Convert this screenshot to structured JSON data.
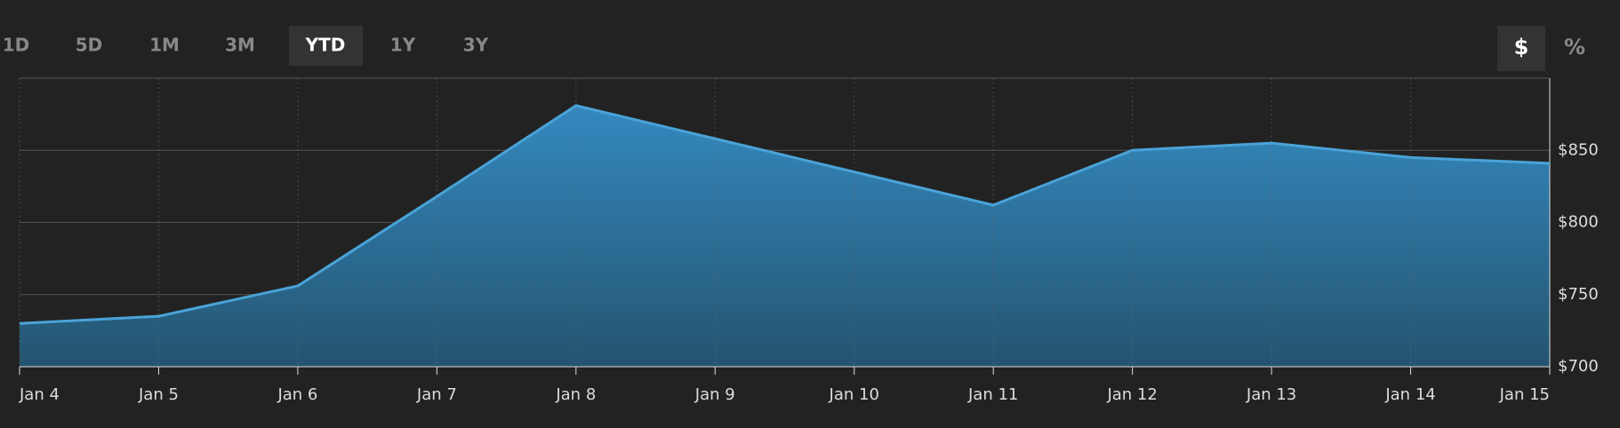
{
  "controls": {
    "ranges": [
      "1D",
      "5D",
      "1M",
      "3M",
      "YTD",
      "1Y",
      "3Y"
    ],
    "active_range": "YTD",
    "units": [
      "$",
      "%"
    ],
    "active_unit": "$"
  },
  "chart_data": {
    "type": "area",
    "categories": [
      "Jan 4",
      "Jan 5",
      "Jan 6",
      "Jan 7",
      "Jan 8",
      "Jan 9",
      "Jan 10",
      "Jan 11",
      "Jan 12",
      "Jan 13",
      "Jan 14",
      "Jan 15"
    ],
    "series": [
      {
        "color": "#4aa3d8",
        "values": [
          730,
          735,
          756,
          818,
          881,
          858,
          835,
          812,
          850,
          855,
          845,
          841
        ]
      }
    ],
    "ylim": [
      700,
      900
    ],
    "yticks": [
      {
        "value": 700,
        "label": "$700"
      },
      {
        "value": 750,
        "label": "$750"
      },
      {
        "value": 800,
        "label": "$800"
      },
      {
        "value": 850,
        "label": "$850"
      }
    ],
    "grid": true
  }
}
